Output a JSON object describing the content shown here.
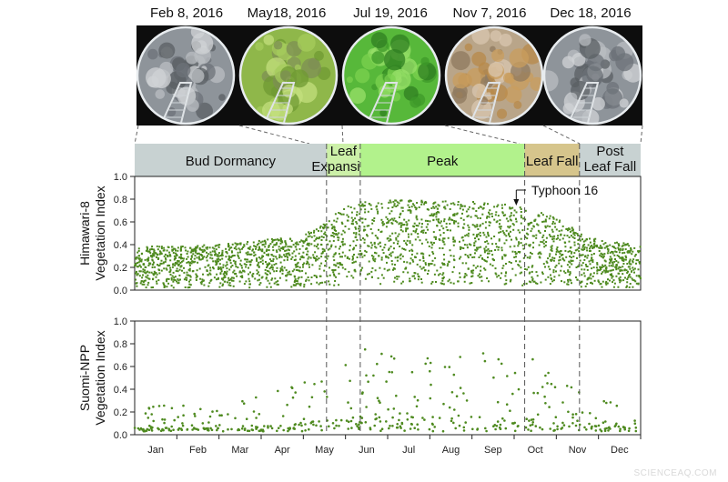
{
  "photos": [
    {
      "date": "Feb 8, 2016",
      "scene": "winter"
    },
    {
      "date": "May18, 2016",
      "scene": "spring"
    },
    {
      "date": "Jul 19, 2016",
      "scene": "summer"
    },
    {
      "date": "Nov 7, 2016",
      "scene": "autumn"
    },
    {
      "date": "Dec 18, 2016",
      "scene": "winter"
    }
  ],
  "phases": [
    {
      "label": [
        "Bud Dormancy"
      ],
      "start": 0.0,
      "end": 4.55,
      "color": "#c8d2d2"
    },
    {
      "label": [
        "Leaf",
        "Expansion"
      ],
      "start": 4.55,
      "end": 5.35,
      "color": "#ccf0a8"
    },
    {
      "label": [
        "Peak"
      ],
      "start": 5.35,
      "end": 9.25,
      "color": "#b2f28c"
    },
    {
      "label": [
        "Leaf Fall"
      ],
      "start": 9.25,
      "end": 10.55,
      "color": "#d6c58c"
    },
    {
      "label": [
        "Post",
        "Leaf Fall"
      ],
      "start": 10.55,
      "end": 12.0,
      "color": "#c8d2d2"
    }
  ],
  "phase_boundaries": [
    4.55,
    5.35,
    9.25,
    10.55
  ],
  "annotation": {
    "label": "Typhoon 16",
    "x": 9.05
  },
  "chart_data": [
    {
      "type": "scatter",
      "panel": "Himawari-8",
      "ylabel": [
        "Himawari-8",
        "Vegetation Index"
      ],
      "ylim": [
        0.0,
        1.0
      ],
      "yticks": [
        "0.0",
        "0.2",
        "0.4",
        "0.6",
        "0.8",
        "1.0"
      ],
      "xlim": [
        0,
        12
      ],
      "xticks": [
        "Jan",
        "Feb",
        "Mar",
        "Apr",
        "May",
        "Jun",
        "Jul",
        "Aug",
        "Sep",
        "Oct",
        "Nov",
        "Dec"
      ],
      "color": "#4e8a1f",
      "envelope_max": [
        [
          0,
          0.38
        ],
        [
          2,
          0.4
        ],
        [
          4,
          0.48
        ],
        [
          4.6,
          0.62
        ],
        [
          5,
          0.74
        ],
        [
          5.5,
          0.79
        ],
        [
          7,
          0.79
        ],
        [
          8.5,
          0.77
        ],
        [
          9.0,
          0.74
        ],
        [
          9.3,
          0.72
        ],
        [
          10.0,
          0.64
        ],
        [
          10.5,
          0.52
        ],
        [
          11,
          0.44
        ],
        [
          12,
          0.4
        ]
      ],
      "envelope_min": [
        [
          0,
          0.02
        ],
        [
          4.5,
          0.02
        ],
        [
          5,
          0.05
        ],
        [
          5.5,
          0.05
        ],
        [
          8.8,
          0.05
        ],
        [
          9.2,
          0.02
        ],
        [
          12,
          0.02
        ]
      ]
    },
    {
      "type": "scatter",
      "panel": "Suomi-NPP",
      "ylabel": [
        "Suomi-NPP",
        "Vegetation Index"
      ],
      "ylim": [
        0.0,
        1.0
      ],
      "yticks": [
        "0.0",
        "0.2",
        "0.4",
        "0.6",
        "0.8",
        "1.0"
      ],
      "xlim": [
        0,
        12
      ],
      "xticks": [
        "Jan",
        "Feb",
        "Mar",
        "Apr",
        "May",
        "Jun",
        "Jul",
        "Aug",
        "Sep",
        "Oct",
        "Nov",
        "Dec"
      ],
      "color": "#4e8a1f",
      "envelope_max": [
        [
          0,
          0.28
        ],
        [
          2,
          0.24
        ],
        [
          3,
          0.36
        ],
        [
          4,
          0.46
        ],
        [
          4.7,
          0.62
        ],
        [
          5.3,
          0.76
        ],
        [
          6.5,
          0.8
        ],
        [
          8.3,
          0.78
        ],
        [
          9.1,
          0.58
        ],
        [
          9.4,
          0.69
        ],
        [
          10.2,
          0.48
        ],
        [
          10.6,
          0.38
        ],
        [
          12,
          0.2
        ]
      ],
      "envelope_min": [
        [
          0,
          0.03
        ],
        [
          12,
          0.03
        ]
      ]
    }
  ],
  "watermark": "SCIENCEAQ.COM"
}
